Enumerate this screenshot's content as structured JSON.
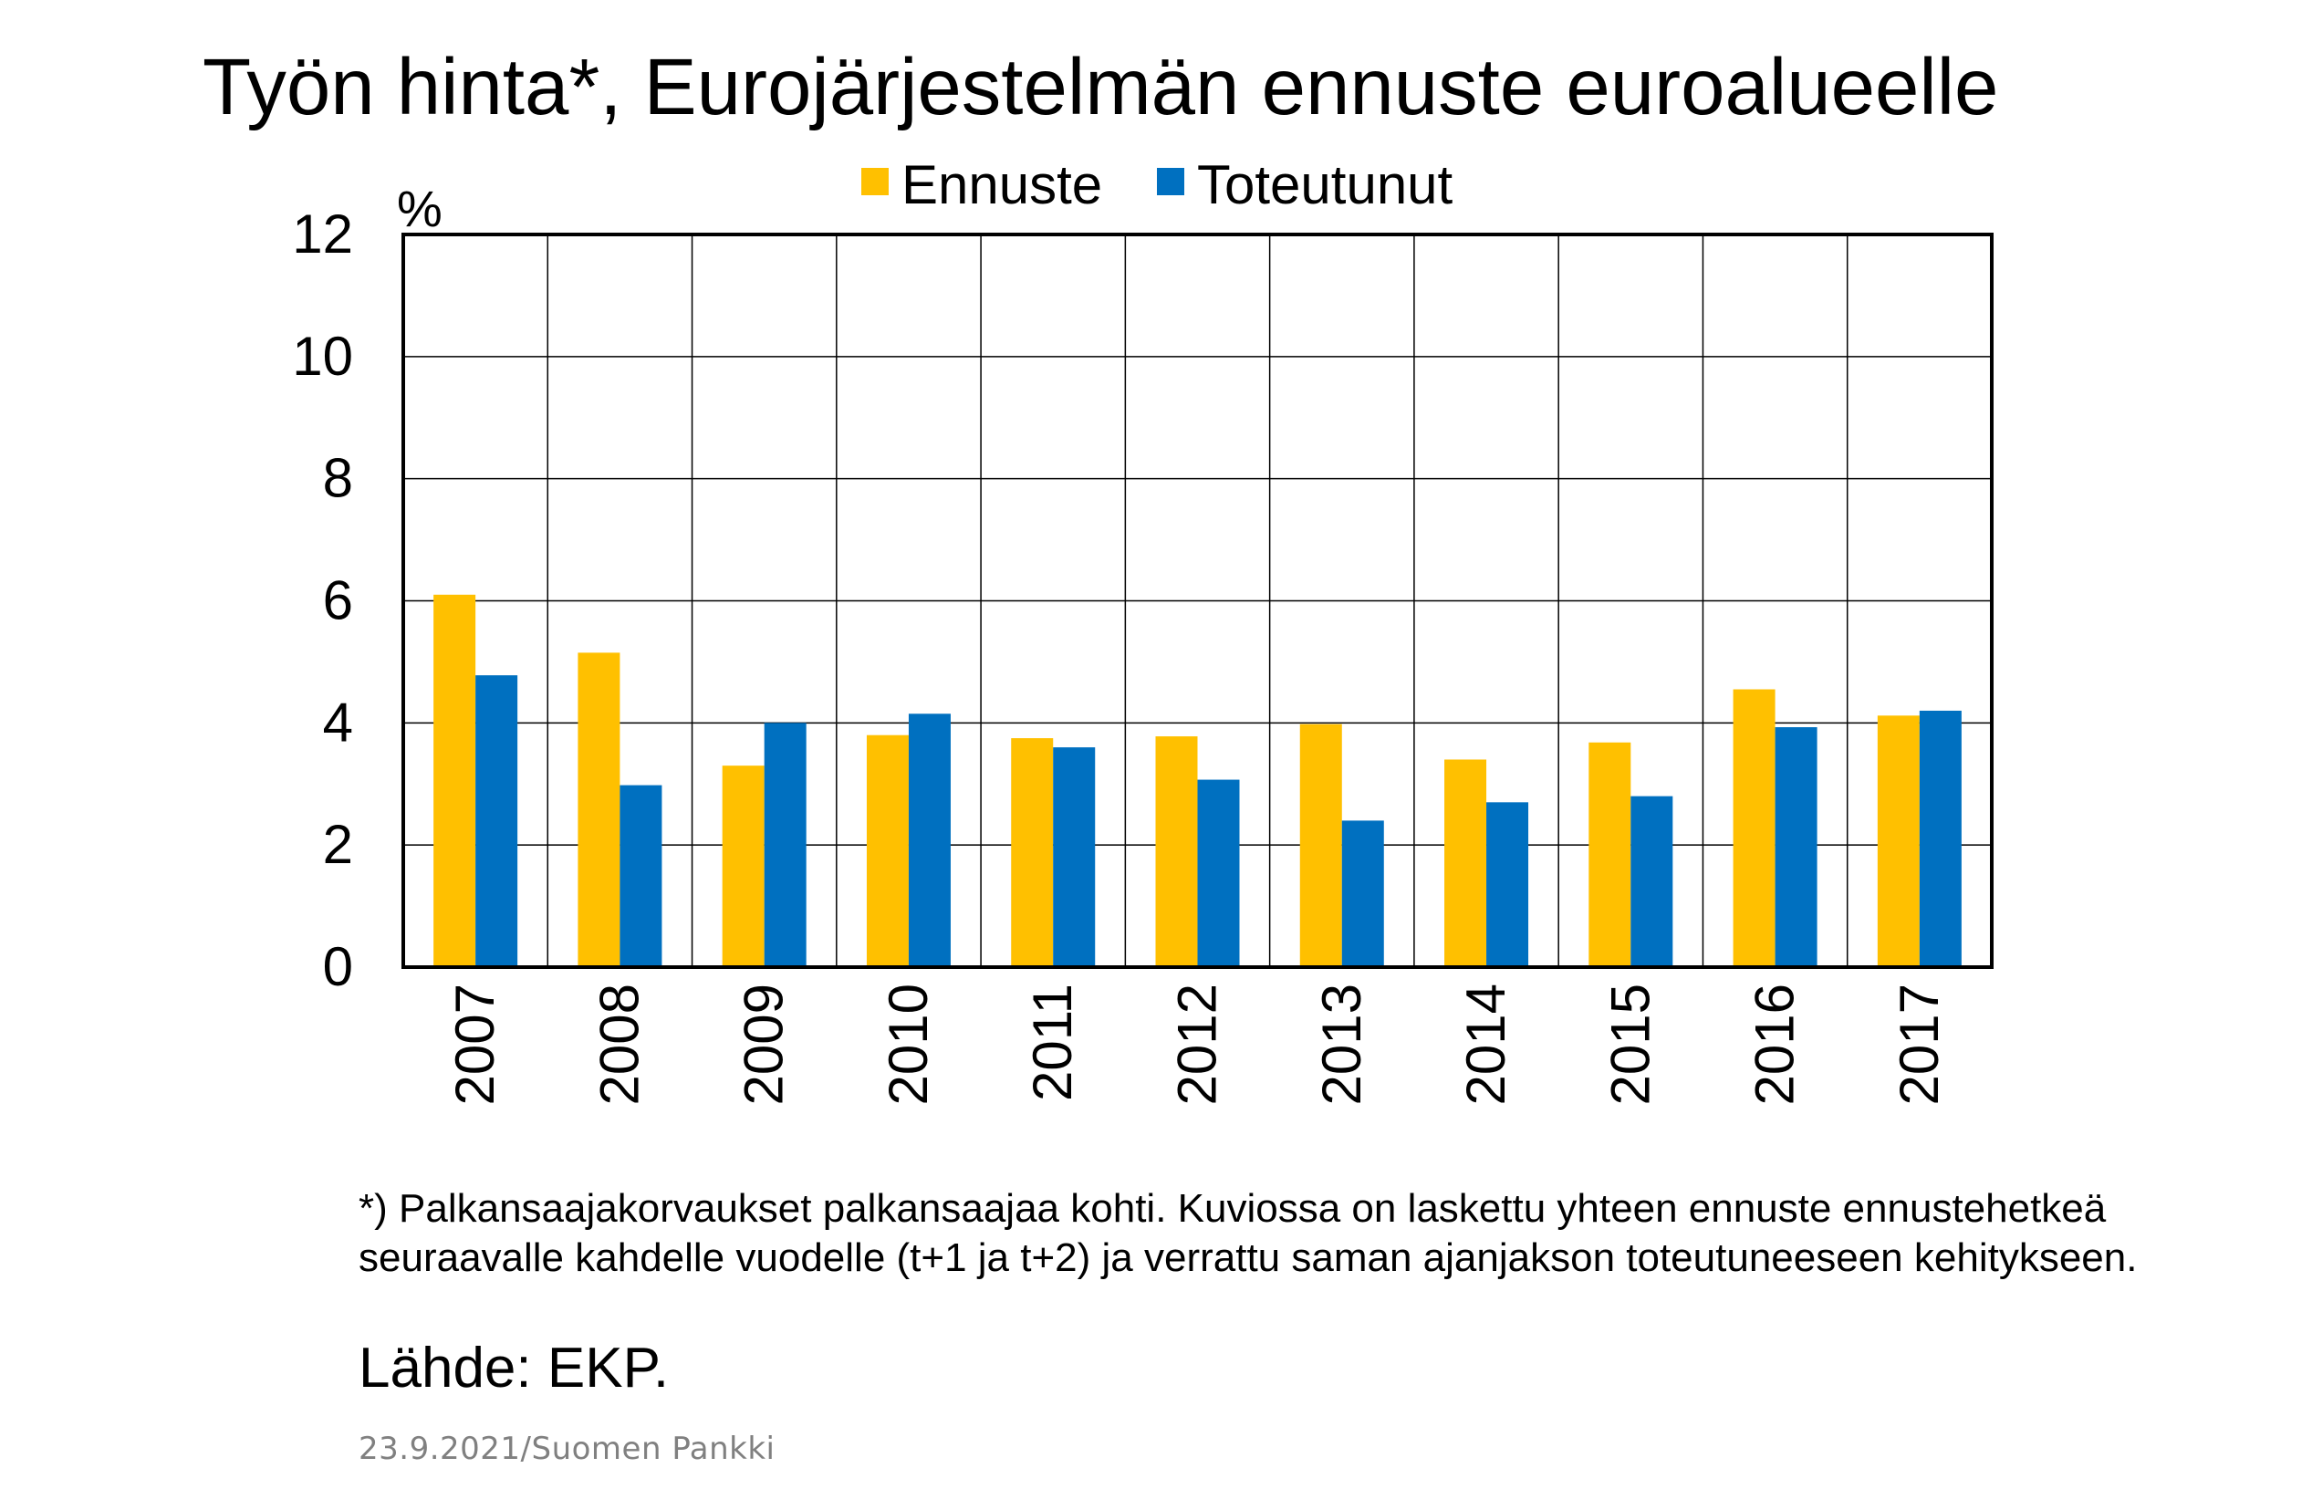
{
  "title": "Työn hinta*, Eurojärjestelmän ennuste euroalueelle",
  "note": "*) Palkansaajakorvaukset palkansaajaa kohti. Kuviossa on laskettu yhteen ennuste ennustehetkeä seuraavalle kahdelle vuodelle (t+1 ja t+2) ja verrattu saman ajanjakson toteutuneeseen kehitykseen.",
  "source": "Lähde: EKP.",
  "footer": "23.9.2021/Suomen Pankki",
  "chart_data": {
    "type": "bar",
    "title": "Työn hinta*, Eurojärjestelmän ennuste euroalueelle",
    "ylabel": "%",
    "xlabel": "",
    "ylim": [
      0,
      12
    ],
    "yticks": [
      0,
      2,
      4,
      6,
      8,
      10,
      12
    ],
    "grid": true,
    "legend_position": "top-center",
    "categories": [
      "2007",
      "2008",
      "2009",
      "2010",
      "2011",
      "2012",
      "2013",
      "2014",
      "2015",
      "2016",
      "2017"
    ],
    "series": [
      {
        "name": "Ennuste",
        "color": "#FFC000",
        "values": [
          6.1,
          5.15,
          3.3,
          3.8,
          3.75,
          3.78,
          3.98,
          3.4,
          3.68,
          4.55,
          4.12
        ]
      },
      {
        "name": "Toteutunut",
        "color": "#0070C0",
        "values": [
          4.78,
          2.98,
          4.0,
          4.15,
          3.6,
          3.07,
          2.4,
          2.7,
          2.8,
          3.93,
          4.2
        ]
      }
    ]
  }
}
